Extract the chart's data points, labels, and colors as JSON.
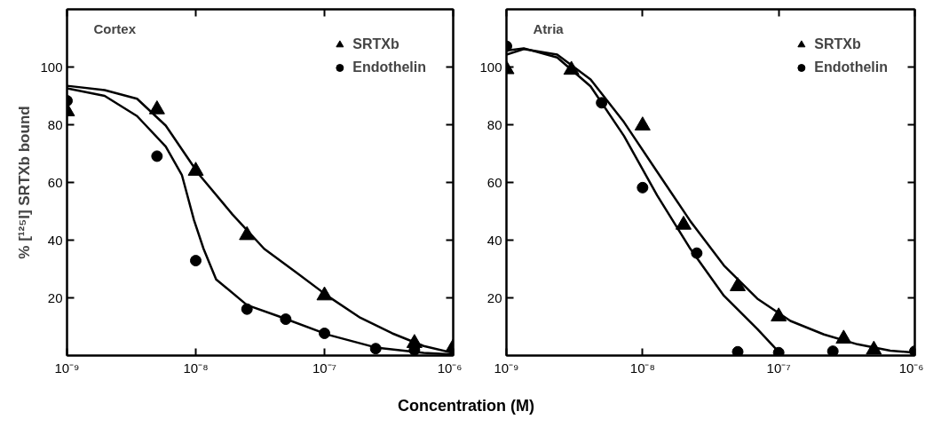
{
  "chart_data": [
    {
      "type": "scatter",
      "title": "Cortex",
      "xlabel": "Concentration (M)",
      "ylabel": "% [¹²⁵I] SRTXb bound",
      "log": "x",
      "xlim": [
        1e-09,
        1e-06
      ],
      "ylim": [
        0,
        120
      ],
      "xticks": [
        {
          "value": 1e-09,
          "label": "10⁻⁹"
        },
        {
          "value": 1e-08,
          "label": "10⁻⁸"
        },
        {
          "value": 1e-07,
          "label": "10⁻⁷"
        },
        {
          "value": 1e-06,
          "label": "10⁻⁶"
        }
      ],
      "yticks": [
        20,
        40,
        60,
        80,
        100
      ],
      "grid": false,
      "legend": "top right",
      "series": [
        {
          "name": "SRTXb",
          "marker": "triangle",
          "color": "#000000",
          "x": [
            1e-09,
            5e-09,
            1e-08,
            2.5e-08,
            1e-07,
            5e-07,
            1e-06
          ],
          "values": [
            84.6,
            85.3,
            64,
            41.7,
            20.8,
            4.3,
            2.8
          ]
        },
        {
          "name": "Endothelin",
          "marker": "circle",
          "color": "#000000",
          "x": [
            1e-09,
            5e-09,
            1e-08,
            2.5e-08,
            5e-08,
            1e-07,
            2.5e-07,
            5e-07
          ],
          "values": [
            88.3,
            69.1,
            32.9,
            16.1,
            12.6,
            7.7,
            2.4,
            1.9
          ]
        },
        {
          "type": "line",
          "line_style": "solid",
          "color": "#000000",
          "x": [
            1e-09,
            1.96e-09,
            3.5e-09,
            5.85e-09,
            1.05e-08,
            1.93e-08,
            3.4e-08,
            6.05e-08,
            1.07e-07,
            1.9e-07,
            3.36e-07,
            5.9e-07,
            1e-06
          ],
          "values": [
            93.5,
            92,
            89,
            79.7,
            63,
            48.9,
            37,
            28.8,
            20.5,
            13.1,
            7.7,
            3.3,
            0.9
          ]
        },
        {
          "type": "line",
          "line_style": "solid",
          "color": "#000000",
          "x": [
            1e-09,
            1.96e-09,
            3.5e-09,
            5.85e-09,
            7.8e-09,
            9.7e-09,
            1.15e-08,
            1.44e-08,
            2.5e-08,
            4.4e-08,
            1.07e-07,
            2.5e-07,
            5.9e-07,
            1e-06
          ],
          "values": [
            92.6,
            90,
            83,
            72.4,
            62.6,
            46.9,
            37,
            26.4,
            17.5,
            13.6,
            7.2,
            2.8,
            0.9,
            0.4
          ]
        }
      ]
    },
    {
      "type": "scatter",
      "title": "Atria",
      "log": "x",
      "xlim": [
        1e-09,
        1e-06
      ],
      "ylim": [
        0,
        120
      ],
      "xticks": [
        {
          "value": 1e-09,
          "label": "10⁻⁹"
        },
        {
          "value": 1e-08,
          "label": "10⁻⁸"
        },
        {
          "value": 1e-07,
          "label": "10⁻⁷"
        },
        {
          "value": 1e-06,
          "label": "10⁻⁶"
        }
      ],
      "yticks": [
        20,
        40,
        60,
        80,
        100
      ],
      "grid": false,
      "legend": "top right",
      "series": [
        {
          "name": "SRTXb",
          "marker": "triangle",
          "color": "#000000",
          "x": [
            1e-09,
            3e-09,
            1e-08,
            2e-08,
            5e-08,
            1e-07,
            3e-07,
            5e-07
          ],
          "values": [
            99.2,
            99,
            79.7,
            45.3,
            24,
            13.5,
            5.8,
            2
          ]
        },
        {
          "name": "Endothelin",
          "marker": "circle",
          "color": "#000000",
          "x": [
            1e-09,
            5e-09,
            1e-08,
            2.5e-08,
            5e-08,
            1e-07,
            2.5e-07,
            1e-06
          ],
          "values": [
            107.2,
            87.6,
            58.2,
            35.5,
            1.3,
            1,
            1.5,
            1.5
          ]
        },
        {
          "type": "line",
          "line_style": "solid",
          "color": "#000000",
          "x": [
            1e-09,
            1.34e-09,
            2.36e-09,
            4.15e-09,
            7.3e-09,
            1.28e-08,
            2.25e-08,
            3.96e-08,
            6.97e-08,
            1.22e-07,
            2.15e-07,
            3.79e-07,
            6.6e-07,
            1e-06
          ],
          "values": [
            104.3,
            106.2,
            104.3,
            95.7,
            80.9,
            63.7,
            46.5,
            31.2,
            19.7,
            12,
            7.3,
            3.9,
            1.7,
            1
          ]
        },
        {
          "type": "line",
          "line_style": "solid",
          "color": "#000000",
          "x": [
            1e-09,
            1.34e-09,
            2.36e-09,
            4.15e-09,
            7.3e-09,
            1.28e-08,
            2.25e-08,
            3.96e-08,
            6.97e-08,
            1e-07
          ],
          "values": [
            105.7,
            106.5,
            103.3,
            93.3,
            76.1,
            55.5,
            36.9,
            20.7,
            9.2,
            1.3
          ]
        }
      ]
    }
  ]
}
